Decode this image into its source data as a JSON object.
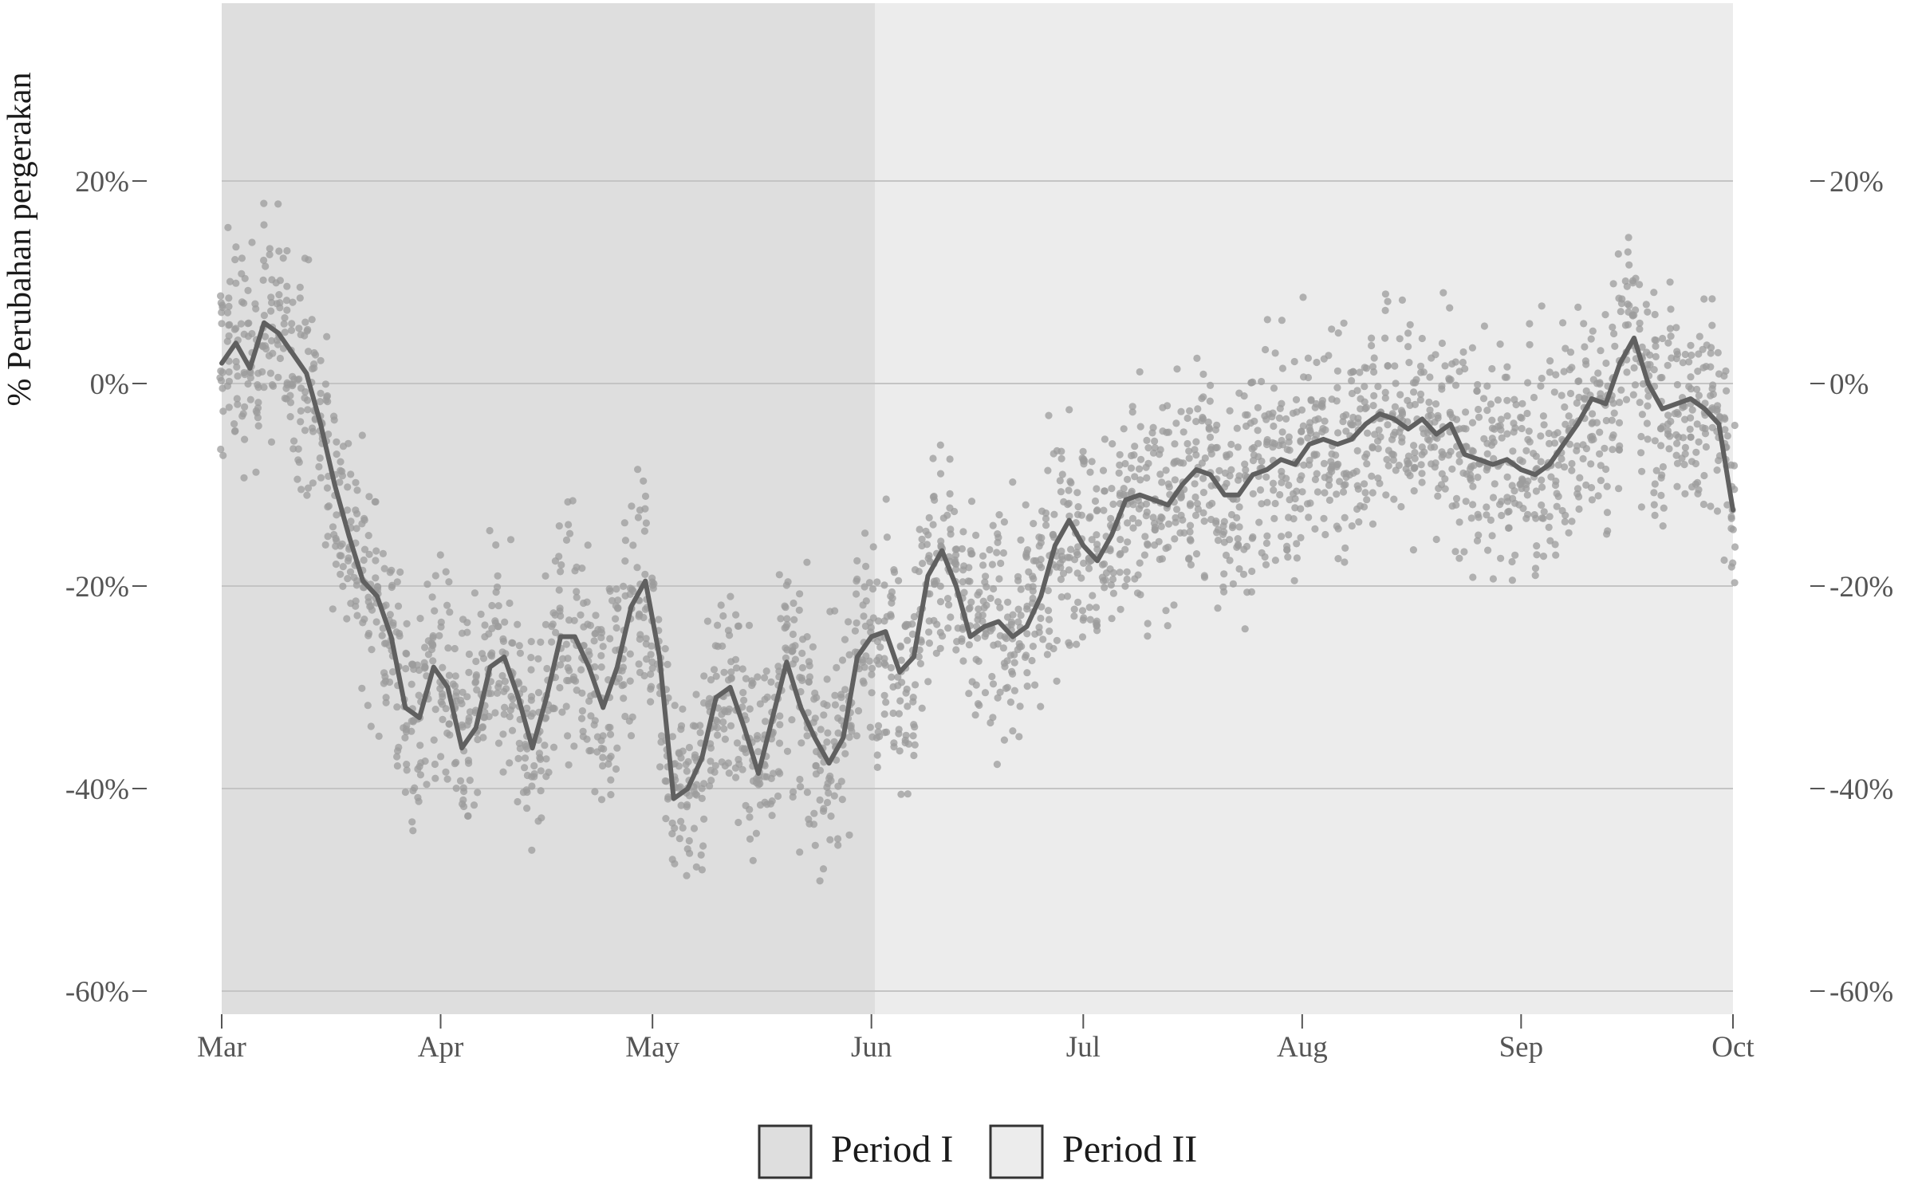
{
  "chart_data": {
    "type": "scatter",
    "title": "",
    "ylabel": "% Perubahan pergerakan",
    "xlabel": "",
    "x_range": [
      "2020-03-01",
      "2020-10-01"
    ],
    "ylim": [
      -62,
      38
    ],
    "y_ticks": [
      {
        "value": 20,
        "label": "20%"
      },
      {
        "value": 0,
        "label": "0%"
      },
      {
        "value": -20,
        "label": "-20%"
      },
      {
        "value": -40,
        "label": "-40%"
      },
      {
        "value": -60,
        "label": "-60%"
      }
    ],
    "x_ticks": [
      {
        "date": "2020-03-01",
        "label": "Mar"
      },
      {
        "date": "2020-04-01",
        "label": "Apr"
      },
      {
        "date": "2020-05-01",
        "label": "May"
      },
      {
        "date": "2020-06-01",
        "label": "Jun"
      },
      {
        "date": "2020-07-01",
        "label": "Jul"
      },
      {
        "date": "2020-08-01",
        "label": "Aug"
      },
      {
        "date": "2020-09-01",
        "label": "Sep"
      },
      {
        "date": "2020-10-01",
        "label": "Oct"
      }
    ],
    "secondary_y_axis": true,
    "grid": true,
    "legend_position": "bottom",
    "periods": [
      {
        "name": "Period I",
        "start": "2020-03-01",
        "end": "2020-06-01",
        "color": "#dedede"
      },
      {
        "name": "Period II",
        "start": "2020-06-01",
        "end": "2020-10-01",
        "color": "#ececec"
      }
    ],
    "trend": {
      "color": "#606060",
      "points": [
        [
          "2020-03-01",
          2
        ],
        [
          "2020-03-03",
          4
        ],
        [
          "2020-03-05",
          1.5
        ],
        [
          "2020-03-07",
          6
        ],
        [
          "2020-03-09",
          5
        ],
        [
          "2020-03-11",
          3
        ],
        [
          "2020-03-13",
          1
        ],
        [
          "2020-03-15",
          -4
        ],
        [
          "2020-03-17",
          -10
        ],
        [
          "2020-03-19",
          -15
        ],
        [
          "2020-03-21",
          -19.5
        ],
        [
          "2020-03-23",
          -21
        ],
        [
          "2020-03-25",
          -25
        ],
        [
          "2020-03-27",
          -32
        ],
        [
          "2020-03-29",
          -33
        ],
        [
          "2020-03-31",
          -28
        ],
        [
          "2020-04-02",
          -30
        ],
        [
          "2020-04-04",
          -36
        ],
        [
          "2020-04-06",
          -34
        ],
        [
          "2020-04-08",
          -28
        ],
        [
          "2020-04-10",
          -27
        ],
        [
          "2020-04-12",
          -31
        ],
        [
          "2020-04-14",
          -36
        ],
        [
          "2020-04-16",
          -31
        ],
        [
          "2020-04-18",
          -25
        ],
        [
          "2020-04-20",
          -25
        ],
        [
          "2020-04-22",
          -28
        ],
        [
          "2020-04-24",
          -32
        ],
        [
          "2020-04-26",
          -28
        ],
        [
          "2020-04-28",
          -22
        ],
        [
          "2020-04-30",
          -19.5
        ],
        [
          "2020-05-02",
          -27
        ],
        [
          "2020-05-04",
          -41
        ],
        [
          "2020-05-06",
          -40
        ],
        [
          "2020-05-08",
          -37
        ],
        [
          "2020-05-10",
          -31
        ],
        [
          "2020-05-12",
          -30
        ],
        [
          "2020-05-14",
          -34
        ],
        [
          "2020-05-16",
          -38.5
        ],
        [
          "2020-05-18",
          -33
        ],
        [
          "2020-05-20",
          -27.5
        ],
        [
          "2020-05-22",
          -32
        ],
        [
          "2020-05-24",
          -35
        ],
        [
          "2020-05-26",
          -37.5
        ],
        [
          "2020-05-28",
          -35
        ],
        [
          "2020-05-30",
          -27
        ],
        [
          "2020-06-01",
          -25
        ],
        [
          "2020-06-03",
          -24.5
        ],
        [
          "2020-06-05",
          -28.5
        ],
        [
          "2020-06-07",
          -27
        ],
        [
          "2020-06-09",
          -19
        ],
        [
          "2020-06-11",
          -16.5
        ],
        [
          "2020-06-13",
          -20
        ],
        [
          "2020-06-15",
          -25
        ],
        [
          "2020-06-17",
          -24
        ],
        [
          "2020-06-19",
          -23.5
        ],
        [
          "2020-06-21",
          -25
        ],
        [
          "2020-06-23",
          -24
        ],
        [
          "2020-06-25",
          -21
        ],
        [
          "2020-06-27",
          -16
        ],
        [
          "2020-06-29",
          -13.5
        ],
        [
          "2020-07-01",
          -16
        ],
        [
          "2020-07-03",
          -17.5
        ],
        [
          "2020-07-05",
          -15
        ],
        [
          "2020-07-07",
          -11.5
        ],
        [
          "2020-07-09",
          -11
        ],
        [
          "2020-07-11",
          -11.5
        ],
        [
          "2020-07-13",
          -12
        ],
        [
          "2020-07-15",
          -10
        ],
        [
          "2020-07-17",
          -8.5
        ],
        [
          "2020-07-19",
          -9
        ],
        [
          "2020-07-21",
          -11
        ],
        [
          "2020-07-23",
          -11
        ],
        [
          "2020-07-25",
          -9
        ],
        [
          "2020-07-27",
          -8.5
        ],
        [
          "2020-07-29",
          -7.5
        ],
        [
          "2020-07-31",
          -8
        ],
        [
          "2020-08-02",
          -6
        ],
        [
          "2020-08-04",
          -5.5
        ],
        [
          "2020-08-06",
          -6
        ],
        [
          "2020-08-08",
          -5.5
        ],
        [
          "2020-08-10",
          -4
        ],
        [
          "2020-08-12",
          -3
        ],
        [
          "2020-08-14",
          -3.5
        ],
        [
          "2020-08-16",
          -4.5
        ],
        [
          "2020-08-18",
          -3.5
        ],
        [
          "2020-08-20",
          -5
        ],
        [
          "2020-08-22",
          -4
        ],
        [
          "2020-08-24",
          -7
        ],
        [
          "2020-08-26",
          -7.5
        ],
        [
          "2020-08-28",
          -8
        ],
        [
          "2020-08-30",
          -7.5
        ],
        [
          "2020-09-01",
          -8.5
        ],
        [
          "2020-09-03",
          -9
        ],
        [
          "2020-09-05",
          -8
        ],
        [
          "2020-09-07",
          -6
        ],
        [
          "2020-09-09",
          -4
        ],
        [
          "2020-09-11",
          -1.5
        ],
        [
          "2020-09-13",
          -2
        ],
        [
          "2020-09-15",
          2
        ],
        [
          "2020-09-17",
          4.5
        ],
        [
          "2020-09-19",
          0
        ],
        [
          "2020-09-21",
          -2.5
        ],
        [
          "2020-09-23",
          -2
        ],
        [
          "2020-09-25",
          -1.5
        ],
        [
          "2020-09-27",
          -2.5
        ],
        [
          "2020-09-29",
          -4
        ],
        [
          "2020-10-01",
          -12.5
        ]
      ]
    },
    "scatter_color": "#9c9c9c"
  }
}
